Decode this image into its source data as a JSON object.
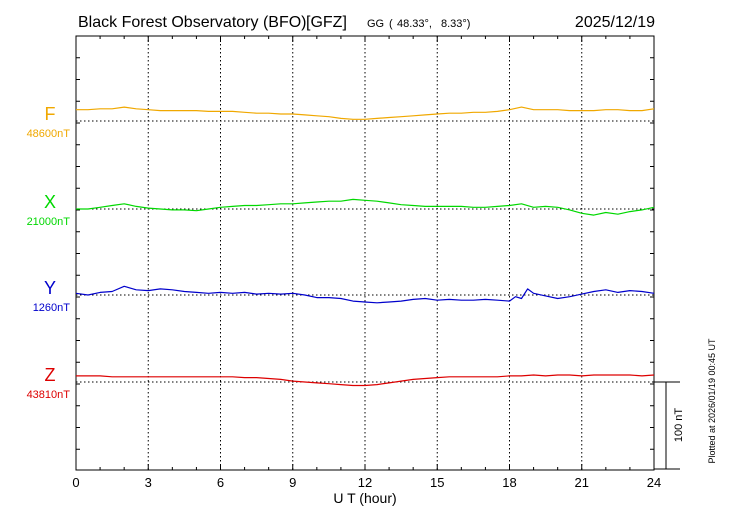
{
  "chart_data": {
    "type": "line",
    "title": "Black Forest Observatory (BFO)",
    "institute": "[GFZ]",
    "coord_label": "GG",
    "lat": "48.33°,",
    "lon": "8.33°)",
    "coord_open": "(",
    "date": "2025/12/19",
    "xlabel": "U T (hour)",
    "x_ticks": [
      "0",
      "3",
      "6",
      "9",
      "12",
      "15",
      "18",
      "21",
      "24"
    ],
    "xlim": [
      0,
      24
    ],
    "grid": true,
    "scale_label": "100 nT",
    "scale_nT": 100,
    "plotted_note": "Plotted at 2026/01/19 00:45 UT",
    "series": [
      {
        "name": "F",
        "baseline_label": "48600nT",
        "baseline_nT": 48600,
        "color": "#f0a800",
        "x": [
          0,
          0.5,
          1,
          1.5,
          2,
          2.5,
          3,
          3.5,
          4,
          4.5,
          5,
          5.5,
          6,
          6.5,
          7,
          7.5,
          8,
          8.5,
          9,
          9.5,
          10,
          10.5,
          11,
          11.5,
          12,
          12.5,
          13,
          13.5,
          14,
          14.5,
          15,
          15.5,
          16,
          16.5,
          17,
          17.5,
          18,
          18.5,
          19,
          19.5,
          20,
          20.5,
          21,
          21.5,
          22,
          22.5,
          23,
          23.5,
          24
        ],
        "values": [
          48613,
          48613,
          48614,
          48614,
          48616,
          48614,
          48613,
          48612,
          48612,
          48612,
          48612,
          48611,
          48611,
          48611,
          48610,
          48609,
          48609,
          48608,
          48608,
          48607,
          48606,
          48605,
          48603,
          48602,
          48602,
          48603,
          48604,
          48605,
          48606,
          48607,
          48608,
          48609,
          48609,
          48610,
          48610,
          48611,
          48613,
          48616,
          48613,
          48613,
          48613,
          48612,
          48612,
          48612,
          48613,
          48613,
          48612,
          48612,
          48614
        ]
      },
      {
        "name": "X",
        "baseline_label": "21000nT",
        "baseline_nT": 21000,
        "color": "#00d800",
        "x": [
          0,
          0.5,
          1,
          1.5,
          2,
          2.5,
          3,
          3.5,
          4,
          4.5,
          5,
          5.5,
          6,
          6.5,
          7,
          7.5,
          8,
          8.5,
          9,
          9.5,
          10,
          10.5,
          11,
          11.5,
          12,
          12.5,
          13,
          13.5,
          14,
          14.5,
          15,
          15.5,
          16,
          16.5,
          17,
          17.5,
          18,
          18.5,
          19,
          19.5,
          20,
          20.5,
          21,
          21.5,
          22,
          22.5,
          23,
          23.5,
          24
        ],
        "values": [
          21000,
          21000,
          21002,
          21004,
          21006,
          21003,
          21001,
          21000,
          20999,
          20999,
          20998,
          21000,
          21002,
          21003,
          21004,
          21004,
          21005,
          21006,
          21006,
          21007,
          21008,
          21009,
          21009,
          21011,
          21010,
          21009,
          21007,
          21005,
          21004,
          21003,
          21003,
          21003,
          21003,
          21002,
          21002,
          21003,
          21004,
          21006,
          21002,
          21003,
          21002,
          20999,
          20995,
          20993,
          20996,
          20994,
          20997,
          20999,
          21002
        ]
      },
      {
        "name": "Y",
        "baseline_label": "1260nT",
        "baseline_nT": 1260,
        "color": "#0000cc",
        "x": [
          0,
          0.5,
          1,
          1.5,
          2,
          2.5,
          3,
          3.5,
          4,
          4.5,
          5,
          5.5,
          6,
          6.5,
          7,
          7.5,
          8,
          8.5,
          9,
          9.5,
          10,
          10.5,
          11,
          11.5,
          12,
          12.5,
          13,
          13.5,
          14,
          14.5,
          15,
          15.5,
          16,
          16.5,
          17,
          17.5,
          18,
          18.25,
          18.5,
          18.75,
          19,
          19.5,
          20,
          20.5,
          21,
          21.5,
          22,
          22.5,
          23,
          23.5,
          24
        ],
        "values": [
          1262,
          1260,
          1263,
          1264,
          1270,
          1266,
          1265,
          1267,
          1266,
          1264,
          1263,
          1262,
          1263,
          1262,
          1263,
          1261,
          1262,
          1261,
          1262,
          1260,
          1257,
          1257,
          1256,
          1253,
          1252,
          1251,
          1252,
          1253,
          1255,
          1256,
          1254,
          1255,
          1254,
          1254,
          1255,
          1254,
          1253,
          1258,
          1256,
          1267,
          1262,
          1259,
          1256,
          1258,
          1261,
          1264,
          1266,
          1263,
          1265,
          1264,
          1262
        ]
      },
      {
        "name": "Z",
        "baseline_label": "43810nT",
        "baseline_nT": 43810,
        "color": "#dd0000",
        "x": [
          0,
          0.5,
          1,
          1.5,
          2,
          2.5,
          3,
          3.5,
          4,
          4.5,
          5,
          5.5,
          6,
          6.5,
          7,
          7.5,
          8,
          8.5,
          9,
          9.5,
          10,
          10.5,
          11,
          11.5,
          12,
          12.5,
          13,
          13.5,
          14,
          14.5,
          15,
          15.5,
          16,
          16.5,
          17,
          17.5,
          18,
          18.5,
          19,
          19.5,
          20,
          20.5,
          21,
          21.5,
          22,
          22.5,
          23,
          23.5,
          24
        ],
        "values": [
          43817,
          43817,
          43817,
          43816,
          43816,
          43816,
          43816,
          43816,
          43816,
          43816,
          43816,
          43816,
          43816,
          43816,
          43815,
          43815,
          43814,
          43813,
          43811,
          43810,
          43809,
          43808,
          43807,
          43806,
          43806,
          43807,
          43809,
          43811,
          43813,
          43814,
          43815,
          43816,
          43816,
          43816,
          43816,
          43816,
          43817,
          43817,
          43818,
          43817,
          43818,
          43818,
          43817,
          43818,
          43818,
          43818,
          43818,
          43817,
          43818
        ]
      }
    ]
  }
}
